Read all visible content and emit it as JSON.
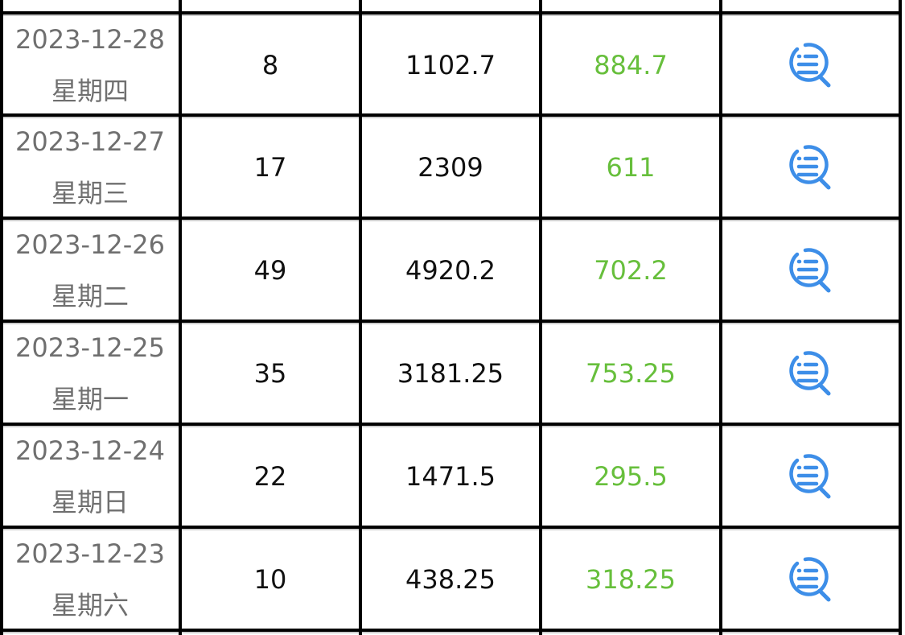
{
  "icon_color": "#3d8ee8",
  "value_color": "#67bf3c",
  "rows": [
    {
      "date": "2023-12-28",
      "weekday": "星期四",
      "count": "8",
      "total": "1102.7",
      "profit": "884.7",
      "action_icon": "search-list-icon"
    },
    {
      "date": "2023-12-27",
      "weekday": "星期三",
      "count": "17",
      "total": "2309",
      "profit": "611",
      "action_icon": "search-list-icon"
    },
    {
      "date": "2023-12-26",
      "weekday": "星期二",
      "count": "49",
      "total": "4920.2",
      "profit": "702.2",
      "action_icon": "search-list-icon"
    },
    {
      "date": "2023-12-25",
      "weekday": "星期一",
      "count": "35",
      "total": "3181.25",
      "profit": "753.25",
      "action_icon": "search-list-icon"
    },
    {
      "date": "2023-12-24",
      "weekday": "星期日",
      "count": "22",
      "total": "1471.5",
      "profit": "295.5",
      "action_icon": "search-list-icon"
    },
    {
      "date": "2023-12-23",
      "weekday": "星期六",
      "count": "10",
      "total": "438.25",
      "profit": "318.25",
      "action_icon": "search-list-icon"
    }
  ]
}
